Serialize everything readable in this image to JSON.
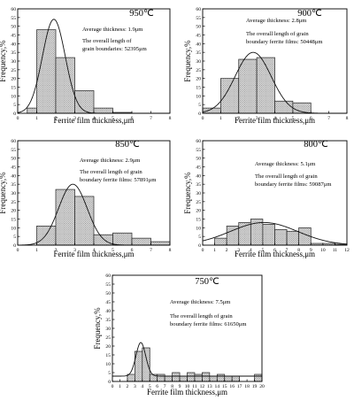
{
  "chart_data": [
    {
      "type": "bar",
      "temperature_label": "950℃",
      "average": "Average thickness: 1.9μm",
      "length_lines": [
        "The overall length of",
        "grain boundaries: 52395μm"
      ],
      "xlabel": "Ferrite film thickness,μm",
      "ylabel": "Frequency,%",
      "xlim": [
        0,
        8
      ],
      "ylim": [
        0,
        60
      ],
      "xticks": [
        0,
        1,
        2,
        3,
        4,
        5,
        6,
        7,
        8
      ],
      "yticks": [
        0,
        5,
        10,
        15,
        20,
        25,
        30,
        35,
        40,
        45,
        50,
        55,
        60
      ],
      "bins": [
        [
          0.5,
          1,
          3
        ],
        [
          1,
          2,
          48
        ],
        [
          2,
          3,
          32
        ],
        [
          3,
          4,
          13
        ],
        [
          4,
          5,
          3
        ],
        [
          5,
          6,
          0.5
        ]
      ],
      "fit": {
        "mean": 1.9,
        "sigma": 0.6,
        "peak": 54
      }
    },
    {
      "type": "bar",
      "temperature_label": "900℃",
      "average": "Average thickness: 2.8μm",
      "length_lines": [
        "The overall length of grain",
        "boundary ferrite films: 50448μm"
      ],
      "xlabel": "Ferrite film thickness,μm",
      "ylabel": "Frequency,%",
      "xlim": [
        0,
        8
      ],
      "ylim": [
        0,
        60
      ],
      "xticks": [
        0,
        1,
        2,
        3,
        4,
        5,
        6,
        7,
        8
      ],
      "yticks": [
        0,
        5,
        10,
        15,
        20,
        25,
        30,
        35,
        40,
        45,
        50,
        55,
        60
      ],
      "bins": [
        [
          0,
          1,
          3
        ],
        [
          1,
          2,
          20
        ],
        [
          2,
          3,
          31
        ],
        [
          3,
          4,
          32
        ],
        [
          4,
          5,
          7
        ],
        [
          5,
          6,
          6
        ]
      ],
      "fit": {
        "mean": 2.8,
        "sigma": 1.0,
        "peak": 35
      }
    },
    {
      "type": "bar",
      "temperature_label": "850℃",
      "average": "Average thickness: 2.9μm",
      "length_lines": [
        "The overall length of grain",
        "boundary ferrite films: 57891μm"
      ],
      "xlabel": "Ferrite film thickness,μm",
      "ylabel": "Frequency,%",
      "xlim": [
        0,
        8
      ],
      "ylim": [
        0,
        60
      ],
      "xticks": [
        0,
        1,
        2,
        3,
        4,
        5,
        6,
        7,
        8
      ],
      "yticks": [
        0,
        5,
        10,
        15,
        20,
        25,
        30,
        35,
        40,
        45,
        50,
        55,
        60
      ],
      "bins": [
        [
          1,
          2,
          11
        ],
        [
          2,
          3,
          32
        ],
        [
          3,
          4,
          28
        ],
        [
          4,
          5,
          6
        ],
        [
          5,
          6,
          7
        ],
        [
          6,
          7,
          4
        ],
        [
          7,
          8,
          2
        ]
      ],
      "fit": {
        "mean": 2.9,
        "sigma": 0.75,
        "peak": 35
      }
    },
    {
      "type": "bar",
      "temperature_label": "800℃",
      "average": "Average thickness: 5.1μm",
      "length_lines": [
        "The overall length of grain",
        "boundary ferrite films: 59087μm"
      ],
      "xlabel": "Ferrite film thickness,μm",
      "ylabel": "Frequency,%",
      "xlim": [
        0,
        12
      ],
      "ylim": [
        0,
        60
      ],
      "xticks": [
        0,
        1,
        2,
        3,
        4,
        5,
        6,
        7,
        8,
        9,
        10,
        11,
        12
      ],
      "yticks": [
        0,
        5,
        10,
        15,
        20,
        25,
        30,
        35,
        40,
        45,
        50,
        55,
        60
      ],
      "bins": [
        [
          1,
          2,
          4
        ],
        [
          2,
          3,
          11
        ],
        [
          3,
          4,
          13
        ],
        [
          4,
          5,
          15
        ],
        [
          5,
          6,
          12
        ],
        [
          6,
          7,
          9
        ],
        [
          7,
          8,
          8
        ],
        [
          8,
          9,
          10
        ],
        [
          9,
          10,
          1
        ],
        [
          10,
          11,
          1
        ],
        [
          11,
          12,
          0.5
        ]
      ],
      "fit": {
        "mean": 5.1,
        "sigma": 2.8,
        "peak": 13
      }
    },
    {
      "type": "bar",
      "temperature_label": "750℃",
      "average": "Average thickness: 7.5μm",
      "length_lines": [
        "The overall length of grain",
        "boundary ferrite films: 61650μm"
      ],
      "xlabel": "Ferrite film thickness,μm",
      "ylabel": "Frequency,%",
      "xlim": [
        0,
        20
      ],
      "ylim": [
        0,
        60
      ],
      "xticks": [
        0,
        1,
        2,
        3,
        4,
        5,
        6,
        7,
        8,
        9,
        10,
        11,
        12,
        13,
        14,
        15,
        16,
        17,
        18,
        19,
        20
      ],
      "yticks": [
        0,
        5,
        10,
        15,
        20,
        25,
        30,
        35,
        40,
        45,
        50,
        55,
        60
      ],
      "bins": [
        [
          2,
          3,
          4
        ],
        [
          3,
          4,
          17
        ],
        [
          4,
          5,
          19
        ],
        [
          5,
          6,
          4
        ],
        [
          6,
          7,
          4
        ],
        [
          7,
          8,
          3
        ],
        [
          8,
          9,
          5
        ],
        [
          9,
          10,
          3
        ],
        [
          10,
          11,
          5
        ],
        [
          11,
          12,
          4
        ],
        [
          12,
          13,
          5
        ],
        [
          13,
          14,
          3
        ],
        [
          14,
          15,
          4
        ],
        [
          15,
          16,
          3
        ],
        [
          16,
          17,
          3
        ],
        [
          19,
          20,
          4
        ]
      ],
      "fit": {
        "mean": 3.8,
        "sigma": 0.65,
        "peak": 22,
        "baseline": 3
      }
    }
  ]
}
